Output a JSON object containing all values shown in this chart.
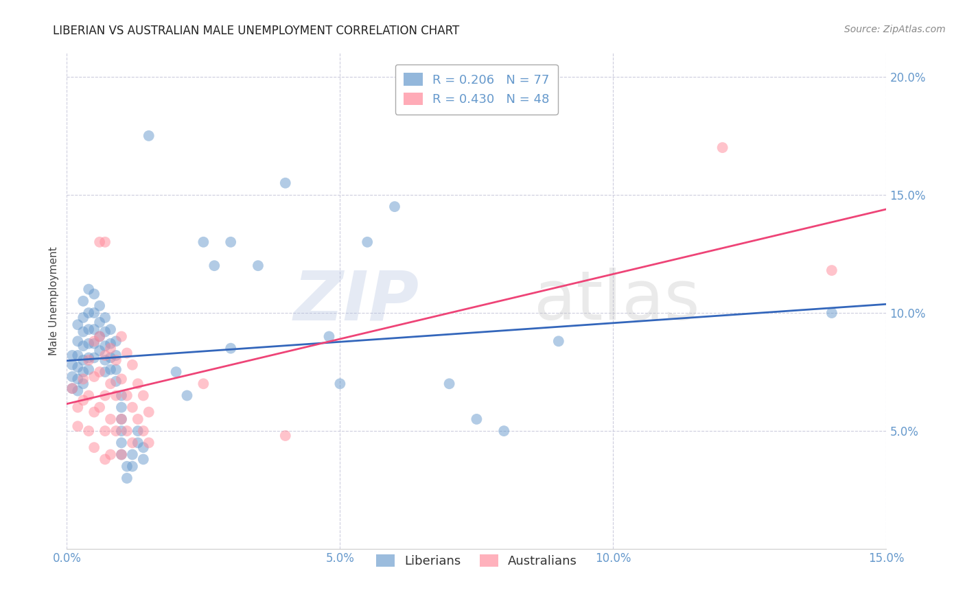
{
  "title": "LIBERIAN VS AUSTRALIAN MALE UNEMPLOYMENT CORRELATION CHART",
  "source": "Source: ZipAtlas.com",
  "ylabel": "Male Unemployment",
  "xlim": [
    0.0,
    0.15
  ],
  "ylim": [
    0.0,
    0.21
  ],
  "xticks": [
    0.0,
    0.05,
    0.1,
    0.15
  ],
  "yticks": [
    0.05,
    0.1,
    0.15,
    0.2
  ],
  "xtick_labels": [
    "0.0%",
    "5.0%",
    "10.0%",
    "15.0%"
  ],
  "ytick_labels": [
    "5.0%",
    "10.0%",
    "15.0%",
    "20.0%"
  ],
  "liberian_color": "#6699CC",
  "australian_color": "#FF8899",
  "liberian_line_color": "#3366BB",
  "australian_line_color": "#EE4477",
  "liberian_R": 0.206,
  "liberian_N": 77,
  "australian_R": 0.43,
  "australian_N": 48,
  "liberian_points": [
    [
      0.001,
      0.082
    ],
    [
      0.001,
      0.078
    ],
    [
      0.001,
      0.073
    ],
    [
      0.001,
      0.068
    ],
    [
      0.002,
      0.095
    ],
    [
      0.002,
      0.088
    ],
    [
      0.002,
      0.082
    ],
    [
      0.002,
      0.077
    ],
    [
      0.002,
      0.072
    ],
    [
      0.002,
      0.067
    ],
    [
      0.003,
      0.105
    ],
    [
      0.003,
      0.098
    ],
    [
      0.003,
      0.092
    ],
    [
      0.003,
      0.086
    ],
    [
      0.003,
      0.08
    ],
    [
      0.003,
      0.075
    ],
    [
      0.003,
      0.07
    ],
    [
      0.004,
      0.11
    ],
    [
      0.004,
      0.1
    ],
    [
      0.004,
      0.093
    ],
    [
      0.004,
      0.087
    ],
    [
      0.004,
      0.081
    ],
    [
      0.004,
      0.076
    ],
    [
      0.005,
      0.108
    ],
    [
      0.005,
      0.1
    ],
    [
      0.005,
      0.093
    ],
    [
      0.005,
      0.087
    ],
    [
      0.005,
      0.081
    ],
    [
      0.006,
      0.103
    ],
    [
      0.006,
      0.096
    ],
    [
      0.006,
      0.09
    ],
    [
      0.006,
      0.084
    ],
    [
      0.007,
      0.098
    ],
    [
      0.007,
      0.092
    ],
    [
      0.007,
      0.086
    ],
    [
      0.007,
      0.08
    ],
    [
      0.007,
      0.075
    ],
    [
      0.008,
      0.093
    ],
    [
      0.008,
      0.087
    ],
    [
      0.008,
      0.081
    ],
    [
      0.008,
      0.076
    ],
    [
      0.009,
      0.088
    ],
    [
      0.009,
      0.082
    ],
    [
      0.009,
      0.076
    ],
    [
      0.009,
      0.071
    ],
    [
      0.01,
      0.065
    ],
    [
      0.01,
      0.06
    ],
    [
      0.01,
      0.055
    ],
    [
      0.01,
      0.05
    ],
    [
      0.01,
      0.045
    ],
    [
      0.01,
      0.04
    ],
    [
      0.011,
      0.035
    ],
    [
      0.011,
      0.03
    ],
    [
      0.012,
      0.035
    ],
    [
      0.012,
      0.04
    ],
    [
      0.013,
      0.045
    ],
    [
      0.013,
      0.05
    ],
    [
      0.014,
      0.038
    ],
    [
      0.014,
      0.043
    ],
    [
      0.015,
      0.175
    ],
    [
      0.02,
      0.075
    ],
    [
      0.022,
      0.065
    ],
    [
      0.025,
      0.13
    ],
    [
      0.027,
      0.12
    ],
    [
      0.03,
      0.13
    ],
    [
      0.03,
      0.085
    ],
    [
      0.035,
      0.12
    ],
    [
      0.04,
      0.155
    ],
    [
      0.048,
      0.09
    ],
    [
      0.05,
      0.07
    ],
    [
      0.055,
      0.13
    ],
    [
      0.06,
      0.145
    ],
    [
      0.07,
      0.07
    ],
    [
      0.075,
      0.055
    ],
    [
      0.08,
      0.05
    ],
    [
      0.09,
      0.088
    ],
    [
      0.14,
      0.1
    ]
  ],
  "australian_points": [
    [
      0.001,
      0.068
    ],
    [
      0.002,
      0.06
    ],
    [
      0.002,
      0.052
    ],
    [
      0.003,
      0.072
    ],
    [
      0.003,
      0.063
    ],
    [
      0.004,
      0.08
    ],
    [
      0.004,
      0.065
    ],
    [
      0.004,
      0.05
    ],
    [
      0.005,
      0.088
    ],
    [
      0.005,
      0.073
    ],
    [
      0.005,
      0.058
    ],
    [
      0.005,
      0.043
    ],
    [
      0.006,
      0.13
    ],
    [
      0.006,
      0.09
    ],
    [
      0.006,
      0.075
    ],
    [
      0.006,
      0.06
    ],
    [
      0.007,
      0.13
    ],
    [
      0.007,
      0.082
    ],
    [
      0.007,
      0.065
    ],
    [
      0.007,
      0.05
    ],
    [
      0.007,
      0.038
    ],
    [
      0.008,
      0.085
    ],
    [
      0.008,
      0.07
    ],
    [
      0.008,
      0.055
    ],
    [
      0.008,
      0.04
    ],
    [
      0.009,
      0.08
    ],
    [
      0.009,
      0.065
    ],
    [
      0.009,
      0.05
    ],
    [
      0.01,
      0.09
    ],
    [
      0.01,
      0.072
    ],
    [
      0.01,
      0.055
    ],
    [
      0.01,
      0.04
    ],
    [
      0.011,
      0.083
    ],
    [
      0.011,
      0.065
    ],
    [
      0.011,
      0.05
    ],
    [
      0.012,
      0.078
    ],
    [
      0.012,
      0.06
    ],
    [
      0.012,
      0.045
    ],
    [
      0.013,
      0.07
    ],
    [
      0.013,
      0.055
    ],
    [
      0.014,
      0.065
    ],
    [
      0.014,
      0.05
    ],
    [
      0.015,
      0.058
    ],
    [
      0.015,
      0.045
    ],
    [
      0.025,
      0.07
    ],
    [
      0.04,
      0.048
    ],
    [
      0.12,
      0.17
    ],
    [
      0.14,
      0.118
    ]
  ],
  "watermark_zip": "ZIP",
  "watermark_atlas": "atlas",
  "background_color": "#ffffff",
  "grid_color": "#ccccdd",
  "tick_color": "#6699CC",
  "title_fontsize": 12,
  "source_fontsize": 10,
  "ylabel_fontsize": 11,
  "tick_fontsize": 12
}
